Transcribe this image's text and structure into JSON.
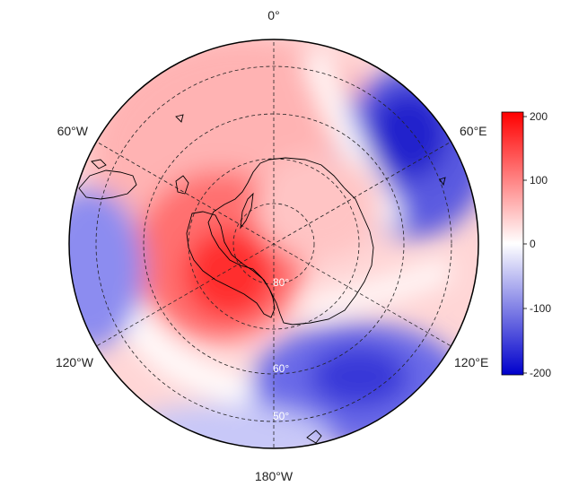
{
  "map": {
    "projection": "south-polar-stereographic",
    "longitude_labels": {
      "top": "0°",
      "bottom": "180°W",
      "upper_left": "60°W",
      "upper_right": "60°E",
      "lower_left": "120°W",
      "lower_right": "120°E"
    },
    "latitude_labels": [
      "80°",
      "60°",
      "50°"
    ],
    "latitude_circles_deg": [
      80,
      70,
      60,
      50
    ],
    "meridians_deg": [
      0,
      60,
      120,
      180,
      240,
      300
    ],
    "pattern": "wavenumber-3 anomaly: strong positive over West Antarctica/Pacific, negative bands in SE Pacific sector, Indian Ocean and SW Atlantic"
  },
  "colorbar": {
    "ticks": [
      "200",
      "100",
      "0",
      "-100",
      "-200"
    ],
    "min": -200,
    "max": 200,
    "colors": {
      "high": "#ff0000",
      "mid": "#ffffff",
      "low": "#0000cc"
    }
  }
}
